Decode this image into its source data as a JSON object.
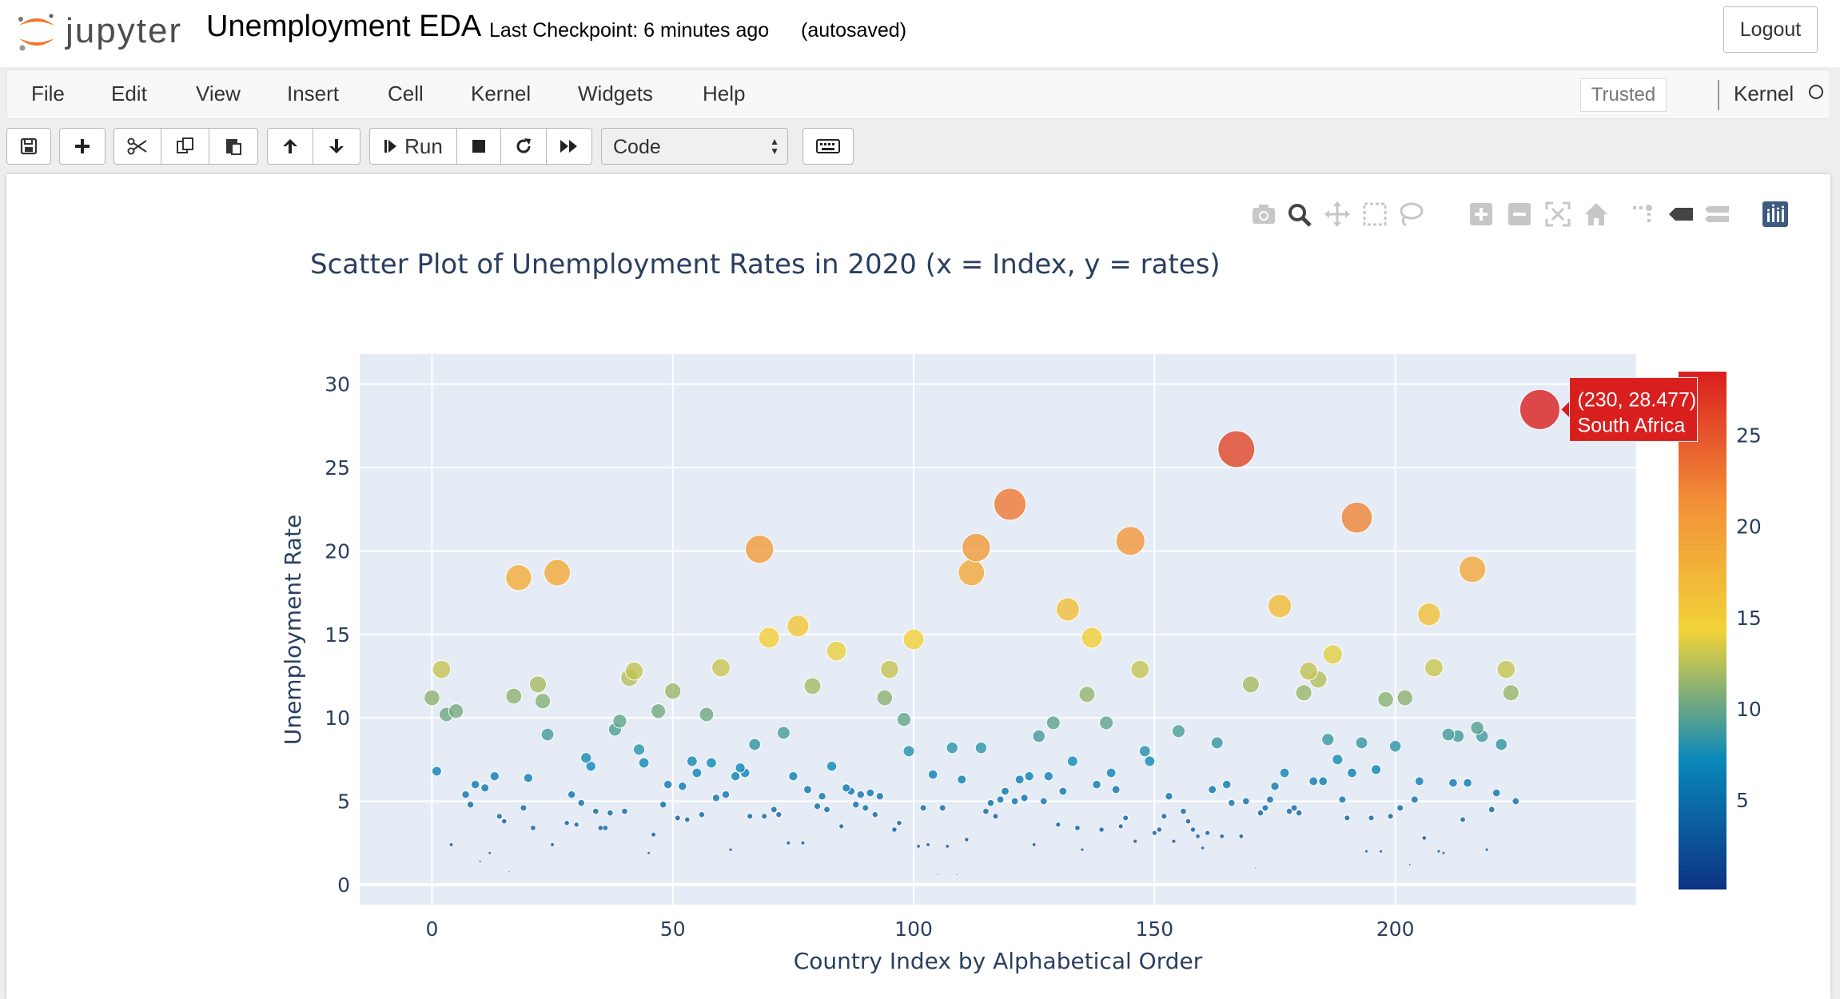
{
  "header": {
    "logo_text": "jupyter",
    "notebook_title": "Unemployment EDA",
    "checkpoint": "Last Checkpoint: 6 minutes ago",
    "autosave": "(autosaved)",
    "logout": "Logout"
  },
  "menu": {
    "items": [
      "File",
      "Edit",
      "View",
      "Insert",
      "Cell",
      "Kernel",
      "Widgets",
      "Help"
    ],
    "trusted": "Trusted",
    "kernel_label": "Kernel"
  },
  "toolbar": {
    "run_label": "Run",
    "cell_type": "Code",
    "icons": [
      "save-icon",
      "plus-icon",
      "cut-icon",
      "copy-icon",
      "paste-icon",
      "arrow-up-icon",
      "arrow-down-icon",
      "run-icon",
      "stop-icon",
      "restart-icon",
      "fast-forward-icon",
      "keyboard-icon"
    ]
  },
  "modebar": {
    "icons": [
      "camera-icon",
      "zoom-icon",
      "pan-icon",
      "box-select-icon",
      "lasso-icon",
      "zoom-in-icon",
      "zoom-out-icon",
      "autoscale-icon",
      "home-icon",
      "spikelines-icon",
      "hover-closest-icon",
      "hover-compare-icon",
      "plotly-logo-icon"
    ]
  },
  "chart_data": {
    "type": "scatter",
    "title": "Scatter Plot of Unemployment Rates in 2020 (x = Index, y = rates)",
    "xlabel": "Country Index by Alphabetical Order",
    "ylabel": "Unemployment Rate",
    "xlim": [
      -15,
      250
    ],
    "ylim": [
      -1.2,
      31.8
    ],
    "xticks": [
      0,
      50,
      100,
      150,
      200
    ],
    "yticks": [
      0,
      5,
      10,
      15,
      20,
      25,
      30
    ],
    "grid": true,
    "marker_size_and_color_encode": "y",
    "colorscale": "Portland",
    "colorbar": {
      "range": [
        0.1,
        28.48
      ],
      "ticks": [
        5,
        10,
        15,
        20,
        25
      ]
    },
    "hover": {
      "text": "(230, 28.477)",
      "label": "South Africa",
      "x": 230,
      "y": 28.477
    },
    "points": [
      [
        0,
        11.2
      ],
      [
        1,
        6.8
      ],
      [
        2,
        12.9
      ],
      [
        3,
        10.2
      ],
      [
        4,
        2.4
      ],
      [
        5,
        10.4
      ],
      [
        7,
        5.4
      ],
      [
        8,
        4.8
      ],
      [
        9,
        6.0
      ],
      [
        10,
        1.4
      ],
      [
        11,
        5.8
      ],
      [
        12,
        1.9
      ],
      [
        13,
        6.5
      ],
      [
        14,
        4.1
      ],
      [
        15,
        3.8
      ],
      [
        16,
        0.8
      ],
      [
        17,
        11.3
      ],
      [
        18,
        18.4
      ],
      [
        19,
        4.6
      ],
      [
        20,
        6.4
      ],
      [
        21,
        3.4
      ],
      [
        22,
        12.0
      ],
      [
        23,
        11.0
      ],
      [
        24,
        9.0
      ],
      [
        25,
        2.4
      ],
      [
        26,
        18.7
      ],
      [
        28,
        3.7
      ],
      [
        29,
        5.4
      ],
      [
        30,
        3.6
      ],
      [
        31,
        4.9
      ],
      [
        32,
        7.6
      ],
      [
        33,
        7.1
      ],
      [
        34,
        4.4
      ],
      [
        35,
        3.4
      ],
      [
        36,
        3.4
      ],
      [
        37,
        4.3
      ],
      [
        38,
        9.3
      ],
      [
        39,
        9.8
      ],
      [
        40,
        4.4
      ],
      [
        41,
        12.4
      ],
      [
        42,
        12.8
      ],
      [
        43,
        8.1
      ],
      [
        44,
        7.3
      ],
      [
        45,
        1.9
      ],
      [
        46,
        3.0
      ],
      [
        47,
        10.4
      ],
      [
        48,
        4.8
      ],
      [
        49,
        6.0
      ],
      [
        50,
        11.6
      ],
      [
        51,
        4.0
      ],
      [
        52,
        5.9
      ],
      [
        53,
        3.9
      ],
      [
        54,
        7.4
      ],
      [
        55,
        6.7
      ],
      [
        56,
        4.2
      ],
      [
        57,
        10.2
      ],
      [
        58,
        7.3
      ],
      [
        59,
        5.2
      ],
      [
        60,
        13.0
      ],
      [
        61,
        5.4
      ],
      [
        62,
        2.1
      ],
      [
        63,
        6.5
      ],
      [
        64,
        7.0
      ],
      [
        65,
        6.7
      ],
      [
        66,
        4.1
      ],
      [
        67,
        8.4
      ],
      [
        68,
        20.1
      ],
      [
        69,
        4.1
      ],
      [
        70,
        14.8
      ],
      [
        71,
        4.5
      ],
      [
        72,
        4.2
      ],
      [
        73,
        9.1
      ],
      [
        74,
        2.5
      ],
      [
        75,
        6.5
      ],
      [
        76,
        15.5
      ],
      [
        77,
        2.5
      ],
      [
        78,
        5.7
      ],
      [
        79,
        11.9
      ],
      [
        80,
        4.7
      ],
      [
        81,
        5.3
      ],
      [
        82,
        4.5
      ],
      [
        83,
        7.1
      ],
      [
        84,
        14.0
      ],
      [
        85,
        3.5
      ],
      [
        86,
        5.8
      ],
      [
        87,
        5.6
      ],
      [
        88,
        4.8
      ],
      [
        89,
        5.4
      ],
      [
        90,
        4.6
      ],
      [
        91,
        5.5
      ],
      [
        92,
        4.2
      ],
      [
        93,
        5.3
      ],
      [
        94,
        11.2
      ],
      [
        95,
        12.9
      ],
      [
        96,
        3.3
      ],
      [
        97,
        3.7
      ],
      [
        98,
        9.9
      ],
      [
        99,
        8.0
      ],
      [
        100,
        14.7
      ],
      [
        101,
        2.3
      ],
      [
        102,
        4.6
      ],
      [
        103,
        2.4
      ],
      [
        104,
        6.6
      ],
      [
        105,
        0.6
      ],
      [
        106,
        4.6
      ],
      [
        107,
        2.3
      ],
      [
        108,
        8.2
      ],
      [
        109,
        0.6
      ],
      [
        110,
        6.3
      ],
      [
        111,
        2.7
      ],
      [
        112,
        18.7
      ],
      [
        113,
        20.2
      ],
      [
        114,
        8.2
      ],
      [
        115,
        4.4
      ],
      [
        116,
        4.9
      ],
      [
        117,
        4.1
      ],
      [
        118,
        5.1
      ],
      [
        119,
        5.6
      ],
      [
        120,
        22.8
      ],
      [
        121,
        5.0
      ],
      [
        122,
        6.3
      ],
      [
        123,
        5.2
      ],
      [
        124,
        6.5
      ],
      [
        125,
        2.4
      ],
      [
        126,
        8.9
      ],
      [
        127,
        5.0
      ],
      [
        128,
        6.5
      ],
      [
        129,
        9.7
      ],
      [
        130,
        3.6
      ],
      [
        131,
        5.6
      ],
      [
        132,
        16.5
      ],
      [
        133,
        7.4
      ],
      [
        134,
        3.4
      ],
      [
        135,
        2.1
      ],
      [
        136,
        11.4
      ],
      [
        137,
        14.8
      ],
      [
        138,
        6.0
      ],
      [
        139,
        3.3
      ],
      [
        140,
        9.7
      ],
      [
        141,
        6.7
      ],
      [
        142,
        5.7
      ],
      [
        143,
        3.5
      ],
      [
        144,
        4.0
      ],
      [
        145,
        20.6
      ],
      [
        146,
        2.6
      ],
      [
        147,
        12.9
      ],
      [
        148,
        8.0
      ],
      [
        149,
        7.4
      ],
      [
        150,
        3.1
      ],
      [
        151,
        3.3
      ],
      [
        152,
        4.1
      ],
      [
        153,
        5.3
      ],
      [
        154,
        2.6
      ],
      [
        155,
        9.2
      ],
      [
        156,
        4.4
      ],
      [
        157,
        3.8
      ],
      [
        158,
        3.3
      ],
      [
        159,
        2.9
      ],
      [
        160,
        2.2
      ],
      [
        161,
        3.1
      ],
      [
        162,
        5.7
      ],
      [
        163,
        8.5
      ],
      [
        164,
        2.9
      ],
      [
        165,
        6.0
      ],
      [
        166,
        4.9
      ],
      [
        167,
        26.1
      ],
      [
        168,
        2.9
      ],
      [
        169,
        5.0
      ],
      [
        170,
        12.0
      ],
      [
        171,
        1.0
      ],
      [
        172,
        4.3
      ],
      [
        173,
        4.6
      ],
      [
        174,
        5.1
      ],
      [
        175,
        5.9
      ],
      [
        176,
        16.7
      ],
      [
        177,
        6.7
      ],
      [
        178,
        4.4
      ],
      [
        179,
        4.6
      ],
      [
        180,
        4.3
      ],
      [
        181,
        11.5
      ],
      [
        182,
        12.8
      ],
      [
        183,
        6.2
      ],
      [
        184,
        12.3
      ],
      [
        185,
        6.2
      ],
      [
        186,
        8.7
      ],
      [
        187,
        13.8
      ],
      [
        188,
        7.5
      ],
      [
        189,
        5.1
      ],
      [
        190,
        4.0
      ],
      [
        191,
        6.7
      ],
      [
        192,
        22.0
      ],
      [
        193,
        8.5
      ],
      [
        194,
        2.0
      ],
      [
        195,
        4.0
      ],
      [
        196,
        6.9
      ],
      [
        197,
        2.0
      ],
      [
        198,
        11.1
      ],
      [
        199,
        4.1
      ],
      [
        200,
        8.3
      ],
      [
        201,
        4.6
      ],
      [
        202,
        11.2
      ],
      [
        203,
        1.2
      ],
      [
        204,
        5.1
      ],
      [
        205,
        6.2
      ],
      [
        206,
        2.8
      ],
      [
        207,
        16.2
      ],
      [
        208,
        13.0
      ],
      [
        209,
        2.0
      ],
      [
        210,
        1.9
      ],
      [
        211,
        9.0
      ],
      [
        212,
        6.1
      ],
      [
        213,
        8.9
      ],
      [
        214,
        3.9
      ],
      [
        215,
        6.1
      ],
      [
        216,
        18.9
      ],
      [
        217,
        9.4
      ],
      [
        218,
        8.9
      ],
      [
        219,
        2.1
      ],
      [
        220,
        4.5
      ],
      [
        221,
        5.5
      ],
      [
        222,
        8.4
      ],
      [
        223,
        12.9
      ],
      [
        224,
        11.5
      ],
      [
        225,
        5.0
      ],
      [
        230,
        28.477
      ]
    ]
  }
}
